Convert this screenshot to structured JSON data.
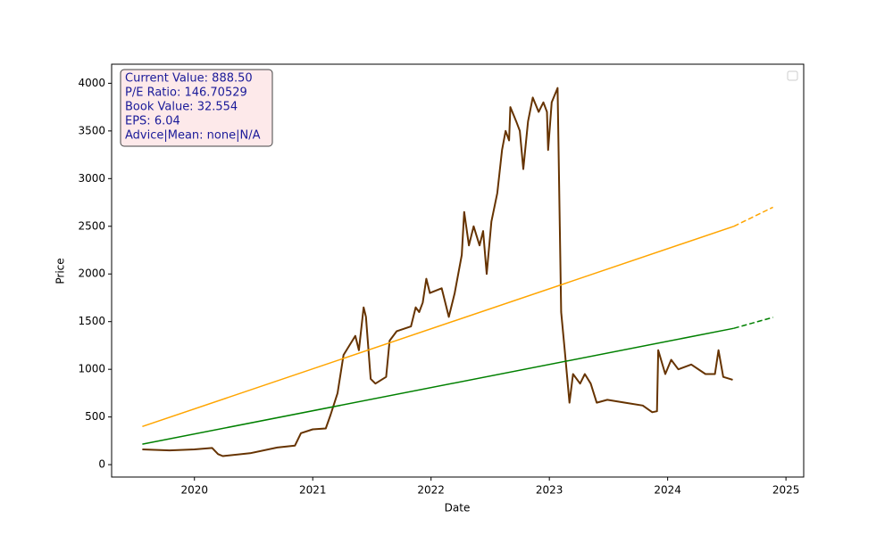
{
  "chart_data": {
    "type": "line",
    "xlabel": "Date",
    "ylabel": "Price",
    "xlim": [
      2019.3,
      2025.15
    ],
    "xticks": [
      2020,
      2021,
      2022,
      2023,
      2024,
      2025
    ],
    "ylim": [
      -130,
      4200
    ],
    "yticks": [
      0,
      500,
      1000,
      1500,
      2000,
      2500,
      3000,
      3500,
      4000
    ],
    "annotation": [
      "Current Value: 888.50",
      "P/E Ratio: 146.70529",
      "Book Value: 32.554",
      "EPS: 6.04",
      "Advice|Mean: none|N/A"
    ],
    "series": [
      {
        "color": "#663300",
        "style": "solid",
        "width": 2,
        "x": [
          2019.56,
          2019.79,
          2020,
          2020.15,
          2020.2,
          2020.24,
          2020.47,
          2020.7,
          2020.85,
          2020.9,
          2021.0,
          2021.11,
          2021.15,
          2021.21,
          2021.26,
          2021.31,
          2021.36,
          2021.39,
          2021.43,
          2021.45,
          2021.49,
          2021.53,
          2021.62,
          2021.65,
          2021.71,
          2021.83,
          2021.87,
          2021.9,
          2021.93,
          2021.96,
          2021.99,
          2022.09,
          2022.15,
          2022.2,
          2022.26,
          2022.28,
          2022.32,
          2022.36,
          2022.41,
          2022.44,
          2022.47,
          2022.51,
          2022.56,
          2022.6,
          2022.63,
          2022.66,
          2022.67,
          2022.72,
          2022.75,
          2022.78,
          2022.82,
          2022.86,
          2022.91,
          2022.95,
          2022.98,
          2022.99,
          2023.02,
          2023.07,
          2023.1,
          2023.13,
          2023.17,
          2023.2,
          2023.26,
          2023.3,
          2023.35,
          2023.4,
          2023.49,
          2023.64,
          2023.79,
          2023.87,
          2023.91,
          2023.92,
          2023.98,
          2024.03,
          2024.09,
          2024.2,
          2024.32,
          2024.4,
          2024.43,
          2024.47,
          2024.55
        ],
        "values": [
          160,
          150,
          160,
          175,
          110,
          90,
          120,
          180,
          200,
          330,
          370,
          380,
          520,
          750,
          1150,
          1250,
          1350,
          1200,
          1650,
          1550,
          900,
          850,
          920,
          1300,
          1400,
          1450,
          1650,
          1600,
          1700,
          1950,
          1800,
          1850,
          1550,
          1800,
          2200,
          2650,
          2300,
          2500,
          2300,
          2450,
          2000,
          2550,
          2850,
          3300,
          3500,
          3400,
          3750,
          3600,
          3500,
          3100,
          3600,
          3850,
          3700,
          3800,
          3700,
          3300,
          3800,
          3950,
          1600,
          1200,
          650,
          950,
          850,
          950,
          850,
          650,
          680,
          650,
          620,
          550,
          560,
          1200,
          950,
          1100,
          1000,
          1050,
          950,
          950,
          1200,
          920,
          890
        ]
      },
      {
        "color": "#ffa500",
        "style": "solid",
        "width": 1.5,
        "x": [
          2019.56,
          2024.56
        ],
        "values": [
          400,
          2500
        ]
      },
      {
        "color": "#ffa500",
        "style": "dashed",
        "width": 1.5,
        "x": [
          2024.56,
          2024.89
        ],
        "values": [
          2500,
          2700
        ]
      },
      {
        "color": "#008000",
        "style": "solid",
        "width": 1.5,
        "x": [
          2019.56,
          2024.56
        ],
        "values": [
          215,
          1430
        ]
      },
      {
        "color": "#008000",
        "style": "dashed",
        "width": 1.5,
        "x": [
          2024.56,
          2024.89
        ],
        "values": [
          1430,
          1545
        ]
      }
    ]
  }
}
